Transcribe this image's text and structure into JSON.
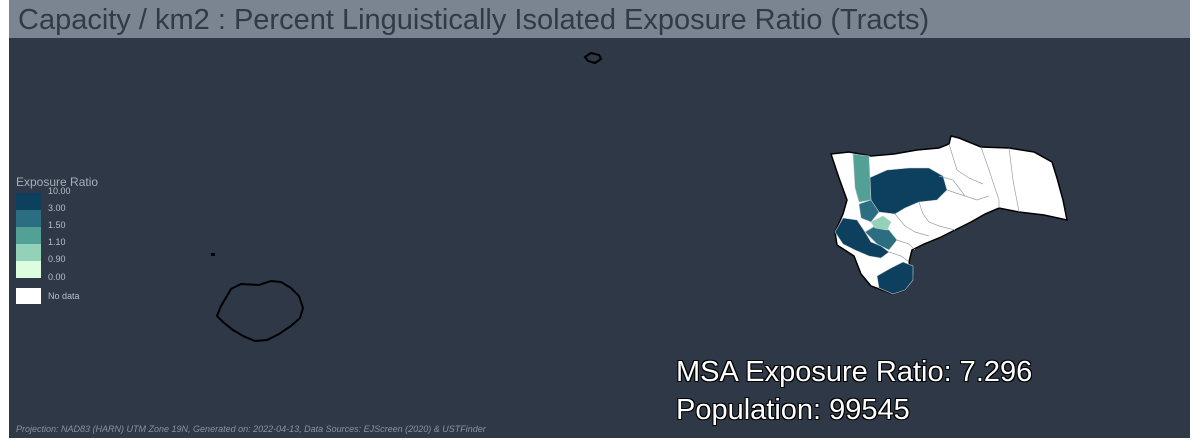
{
  "title": "Capacity / km2 : Percent Linguistically Isolated Exposure Ratio (Tracts)",
  "legend": {
    "title": "Exposure Ratio",
    "breaks": [
      "10.00",
      "3.00",
      "1.50",
      "1.10",
      "0.90",
      "0.00"
    ],
    "classes": [
      {
        "color": "#0d3f5e"
      },
      {
        "color": "#2b6e82"
      },
      {
        "color": "#52a096"
      },
      {
        "color": "#93d2b8"
      },
      {
        "color": "#dcfde0"
      }
    ],
    "no_data": {
      "label": "No data",
      "color": "#ffffff"
    }
  },
  "stats": {
    "msa_exposure_ratio": "MSA Exposure Ratio: 7.296",
    "population": "Population: 99545"
  },
  "footer": "Projection: NAD83 (HARN) UTM Zone 19N, Generated on: 2022-04-13, Data Sources: EJScreen (2020) & USTFinder",
  "colors": {
    "background": "#2e3846",
    "title_bar": "#7b8491",
    "boundary": "#000000",
    "tract_border": "#c8cdd2"
  }
}
